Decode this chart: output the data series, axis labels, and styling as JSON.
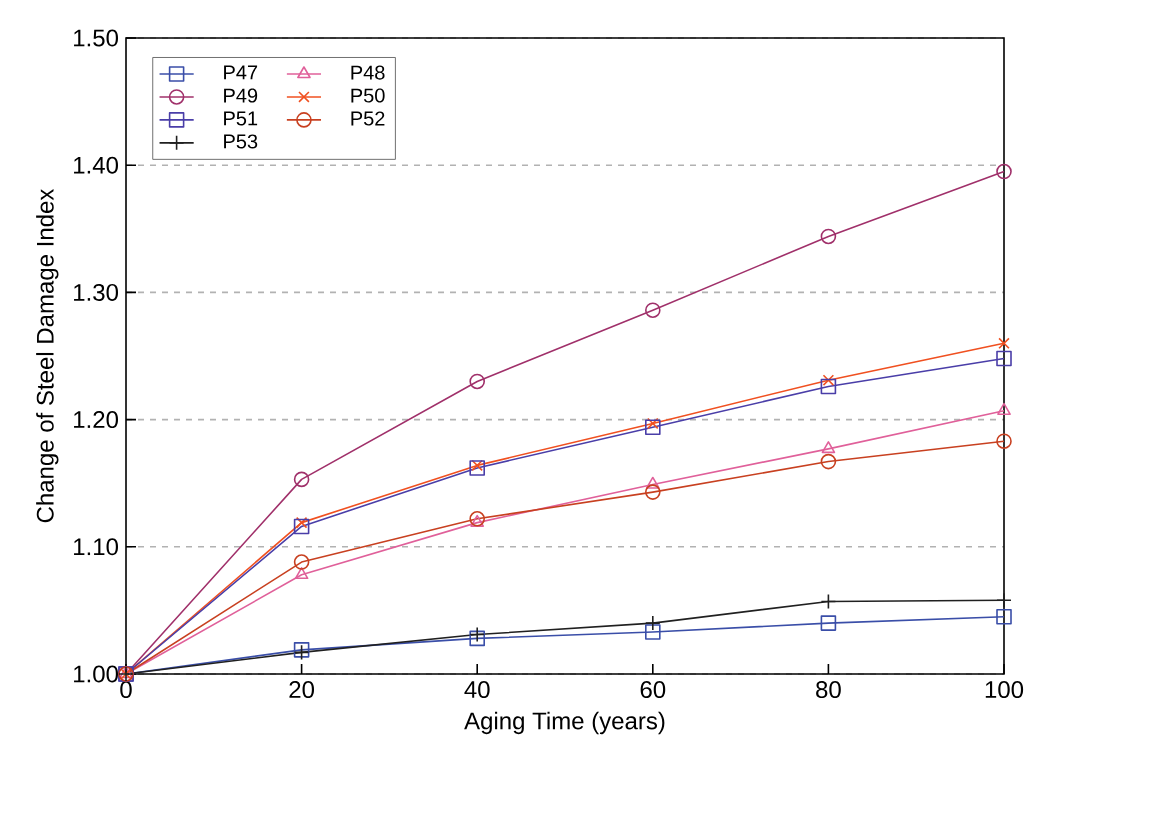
{
  "chart_data": {
    "type": "line",
    "xlabel": "Aging Time (years)",
    "ylabel": "Change of Steel Damage Index",
    "x": [
      0,
      20,
      40,
      60,
      80,
      100
    ],
    "series": [
      {
        "name": "P47",
        "color": "#3a4ea8",
        "marker": "square",
        "values": [
          1.0,
          1.019,
          1.028,
          1.033,
          1.04,
          1.045
        ]
      },
      {
        "name": "P48",
        "color": "#e0609a",
        "marker": "triangle",
        "values": [
          1.0,
          1.078,
          1.119,
          1.149,
          1.177,
          1.207
        ]
      },
      {
        "name": "P49",
        "color": "#a0306a",
        "marker": "circle",
        "values": [
          1.0,
          1.153,
          1.23,
          1.286,
          1.344,
          1.395
        ]
      },
      {
        "name": "P50",
        "color": "#f05020",
        "marker": "cross",
        "values": [
          1.0,
          1.119,
          1.164,
          1.197,
          1.231,
          1.26
        ]
      },
      {
        "name": "P51",
        "color": "#4a3ea8",
        "marker": "square",
        "values": [
          1.0,
          1.116,
          1.162,
          1.194,
          1.226,
          1.248
        ]
      },
      {
        "name": "P52",
        "color": "#c84020",
        "marker": "circle",
        "values": [
          1.0,
          1.088,
          1.122,
          1.143,
          1.167,
          1.183
        ]
      },
      {
        "name": "P53",
        "color": "#202020",
        "marker": "plus",
        "values": [
          1.0,
          1.017,
          1.031,
          1.04,
          1.057,
          1.058
        ]
      }
    ],
    "xlim": [
      0,
      100
    ],
    "xticks": [
      0,
      20,
      40,
      60,
      80,
      100
    ],
    "ylim": [
      1.0,
      1.5
    ],
    "yticks": [
      {
        "value": 1.0,
        "label": "1.00"
      },
      {
        "value": 1.1,
        "label": "1.10"
      },
      {
        "value": 1.2,
        "label": "1.20"
      },
      {
        "value": 1.3,
        "label": "1.30"
      },
      {
        "value": 1.4,
        "label": "1.40"
      },
      {
        "value": 1.5,
        "label": "1.50"
      }
    ],
    "grid": "y",
    "legend": "top left",
    "line_style": "solid"
  }
}
